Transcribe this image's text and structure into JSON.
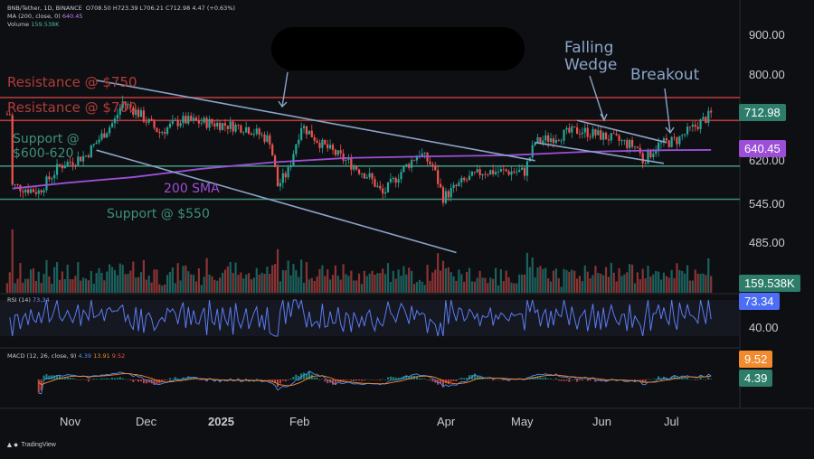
{
  "header": {
    "symbol_line": "BNB/Tether, 1D, BINANCE",
    "ohlc": "O708.50  H723.39  L706.21  C712.98  4.47 (+0.63%)",
    "ma_line": "MA (200, close, 0)",
    "ma_value": "640.45",
    "volume_label": "Volume",
    "volume_value": "159.538K"
  },
  "price_axis": [
    "900.00",
    "800.00",
    "620.00",
    "545.00",
    "485.00"
  ],
  "tags": {
    "last_price": "712.98",
    "sma": "640.45",
    "volume": "159.538K",
    "rsi": "73.34",
    "macd_a": "9.52",
    "macd_b": "4.39"
  },
  "rsi": {
    "title": "RSI (14)",
    "value": "73.34",
    "axis": "40.00"
  },
  "macd": {
    "title": "MACD (12, 26, close, 9)",
    "v1": "4.39",
    "v2": "13.91",
    "v3": "9.52"
  },
  "annotations": {
    "resistance_750": "Resistance @ $750",
    "resistance_700": "Resistance @ $700",
    "support_600_l1": "Support @",
    "support_600_l2": "$600-620",
    "sma_200": "200 SMA",
    "support_550": "Support @ $550",
    "falling_l1": "Falling",
    "falling_l2": "Wedge",
    "breakout": "Breakout"
  },
  "months": [
    "Nov",
    "Dec",
    "2025",
    "Feb",
    "Apr",
    "May",
    "Jun",
    "Jul"
  ],
  "branding": "TradingView",
  "colors": {
    "up": "#26a69a",
    "down": "#ef5350",
    "sma": "#9c4fd6",
    "resistance": "#b23b3b",
    "support": "#3f8f7a",
    "trendline": "#8aa4c8",
    "rsi": "#5b7cf0",
    "tag_green": "#2e7d6b",
    "tag_purple": "#9c4fd6",
    "tag_orange": "#f28a2e",
    "tag_blue": "#4c6ef5"
  },
  "chart_data": {
    "type": "candlestick",
    "symbol": "BNB/Tether",
    "timeframe": "1D",
    "ylim": [
      440,
      925
    ],
    "price_scale": "log",
    "horizontal_levels": [
      {
        "label": "Resistance @ $750",
        "value": 750
      },
      {
        "label": "Resistance @ $700",
        "value": 700
      },
      {
        "label": "Support @ $600-620",
        "value": 610
      },
      {
        "label": "Support @ $550",
        "value": 552
      }
    ],
    "sma_200": [
      [
        "2024-10-25",
        570
      ],
      [
        "2024-11-15",
        580
      ],
      [
        "2024-12-10",
        590
      ],
      [
        "2025-01-05",
        605
      ],
      [
        "2025-02-01",
        617
      ],
      [
        "2025-03-01",
        625
      ],
      [
        "2025-04-01",
        628
      ],
      [
        "2025-05-01",
        630
      ],
      [
        "2025-06-01",
        637
      ],
      [
        "2025-07-01",
        640
      ],
      [
        "2025-07-18",
        640.45
      ]
    ],
    "price_path": [
      [
        "2024-10-25",
        575
      ],
      [
        "2024-11-04",
        565
      ],
      [
        "2024-11-12",
        610
      ],
      [
        "2024-11-22",
        630
      ],
      [
        "2024-12-03",
        700
      ],
      [
        "2024-12-06",
        740
      ],
      [
        "2024-12-12",
        715
      ],
      [
        "2024-12-20",
        675
      ],
      [
        "2024-12-28",
        700
      ],
      [
        "2025-01-08",
        695
      ],
      [
        "2025-01-15",
        690
      ],
      [
        "2025-01-22",
        685
      ],
      [
        "2025-01-31",
        660
      ],
      [
        "2025-02-03",
        575
      ],
      [
        "2025-02-07",
        600
      ],
      [
        "2025-02-12",
        690
      ],
      [
        "2025-02-20",
        650
      ],
      [
        "2025-03-01",
        620
      ],
      [
        "2025-03-10",
        590
      ],
      [
        "2025-03-15",
        560
      ],
      [
        "2025-03-22",
        600
      ],
      [
        "2025-03-29",
        635
      ],
      [
        "2025-04-03",
        610
      ],
      [
        "2025-04-07",
        555
      ],
      [
        "2025-04-14",
        580
      ],
      [
        "2025-04-22",
        600
      ],
      [
        "2025-05-01",
        600
      ],
      [
        "2025-05-08",
        600
      ],
      [
        "2025-05-12",
        655
      ],
      [
        "2025-05-22",
        670
      ],
      [
        "2025-05-29",
        680
      ],
      [
        "2025-06-05",
        670
      ],
      [
        "2025-06-12",
        660
      ],
      [
        "2025-06-20",
        645
      ],
      [
        "2025-06-22",
        620
      ],
      [
        "2025-06-28",
        650
      ],
      [
        "2025-07-05",
        660
      ],
      [
        "2025-07-10",
        680
      ],
      [
        "2025-07-15",
        700
      ],
      [
        "2025-07-18",
        712.98
      ]
    ],
    "trendlines": [
      {
        "from": [
          "2024-11-26",
          790
        ],
        "to": [
          "2025-05-12",
          620
        ]
      },
      {
        "from": [
          "2024-11-26",
          640
        ],
        "to": [
          "2025-04-12",
          470
        ]
      },
      {
        "from": [
          "2025-05-28",
          700
        ],
        "to": [
          "2025-07-01",
          655
        ]
      },
      {
        "from": [
          "2025-05-12",
          655
        ],
        "to": [
          "2025-06-30",
          615
        ]
      }
    ]
  }
}
